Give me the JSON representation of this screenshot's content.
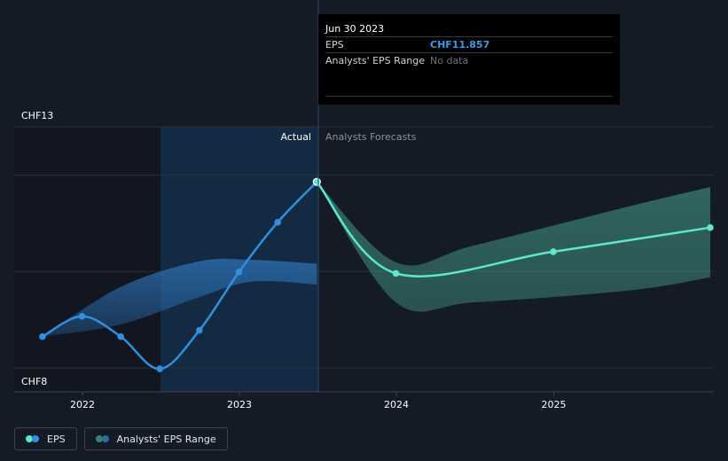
{
  "chart_data": {
    "type": "line",
    "y_unit": "CHF",
    "ylim": [
      8,
      13
    ],
    "y_tick_labels": [
      "CHF13",
      "CHF8"
    ],
    "x_tick_labels": [
      "2022",
      "2023",
      "2024",
      "2025"
    ],
    "region_labels": {
      "actual": "Actual",
      "forecast": "Analysts Forecasts"
    },
    "series": [
      {
        "name": "EPS",
        "color": "#2f8fe0",
        "points": [
          {
            "x": "2021-09-30",
            "y": 8.65
          },
          {
            "x": "2021-12-31",
            "y": 9.07
          },
          {
            "x": "2022-03-31",
            "y": 8.65
          },
          {
            "x": "2022-06-30",
            "y": 7.98
          },
          {
            "x": "2022-09-30",
            "y": 8.78
          },
          {
            "x": "2022-12-31",
            "y": 9.99
          },
          {
            "x": "2023-03-31",
            "y": 11.02
          },
          {
            "x": "2023-06-30",
            "y": 11.857
          }
        ]
      },
      {
        "name": "EPS",
        "color": "#5ee6d0",
        "points": [
          {
            "x": "2023-06-30",
            "y": 11.857
          },
          {
            "x": "2023-12-31",
            "y": 9.96
          },
          {
            "x": "2024-12-31",
            "y": 10.41
          },
          {
            "x": "2025-12-31",
            "y": 10.91
          }
        ]
      }
    ],
    "ranges": [
      {
        "name": "Analysts' EPS Range",
        "color": "#2a6aa8",
        "x": [
          "2021-09-30",
          "2022-03-31",
          "2022-09-30",
          "2023-01-31",
          "2023-06-30"
        ],
        "low": [
          8.65,
          8.9,
          9.47,
          9.79,
          9.73
        ],
        "high": [
          8.65,
          9.68,
          10.21,
          10.24,
          10.16
        ]
      },
      {
        "name": "Analysts' EPS Range",
        "color": "#3a7f72",
        "x": [
          "2023-06-30",
          "2023-12-31",
          "2024-06-30",
          "2025-06-30",
          "2025-12-31"
        ],
        "low": [
          11.857,
          9.36,
          9.36,
          9.61,
          9.88
        ],
        "high": [
          11.857,
          10.19,
          10.54,
          11.36,
          11.75
        ]
      }
    ],
    "grid": true,
    "legend_position": "bottom-left"
  },
  "tooltip": {
    "date": "Jun 30 2023",
    "rows": [
      {
        "label": "EPS",
        "value": "CHF11.857"
      },
      {
        "label": "Analysts' EPS Range",
        "value": "No data"
      }
    ]
  },
  "legend": [
    {
      "label": "EPS",
      "colors": [
        "#5ee6d0",
        "#2f8fe0"
      ]
    },
    {
      "label": "Analysts' EPS Range",
      "colors": [
        "#3a7f72",
        "#2a6aa8"
      ]
    }
  ]
}
